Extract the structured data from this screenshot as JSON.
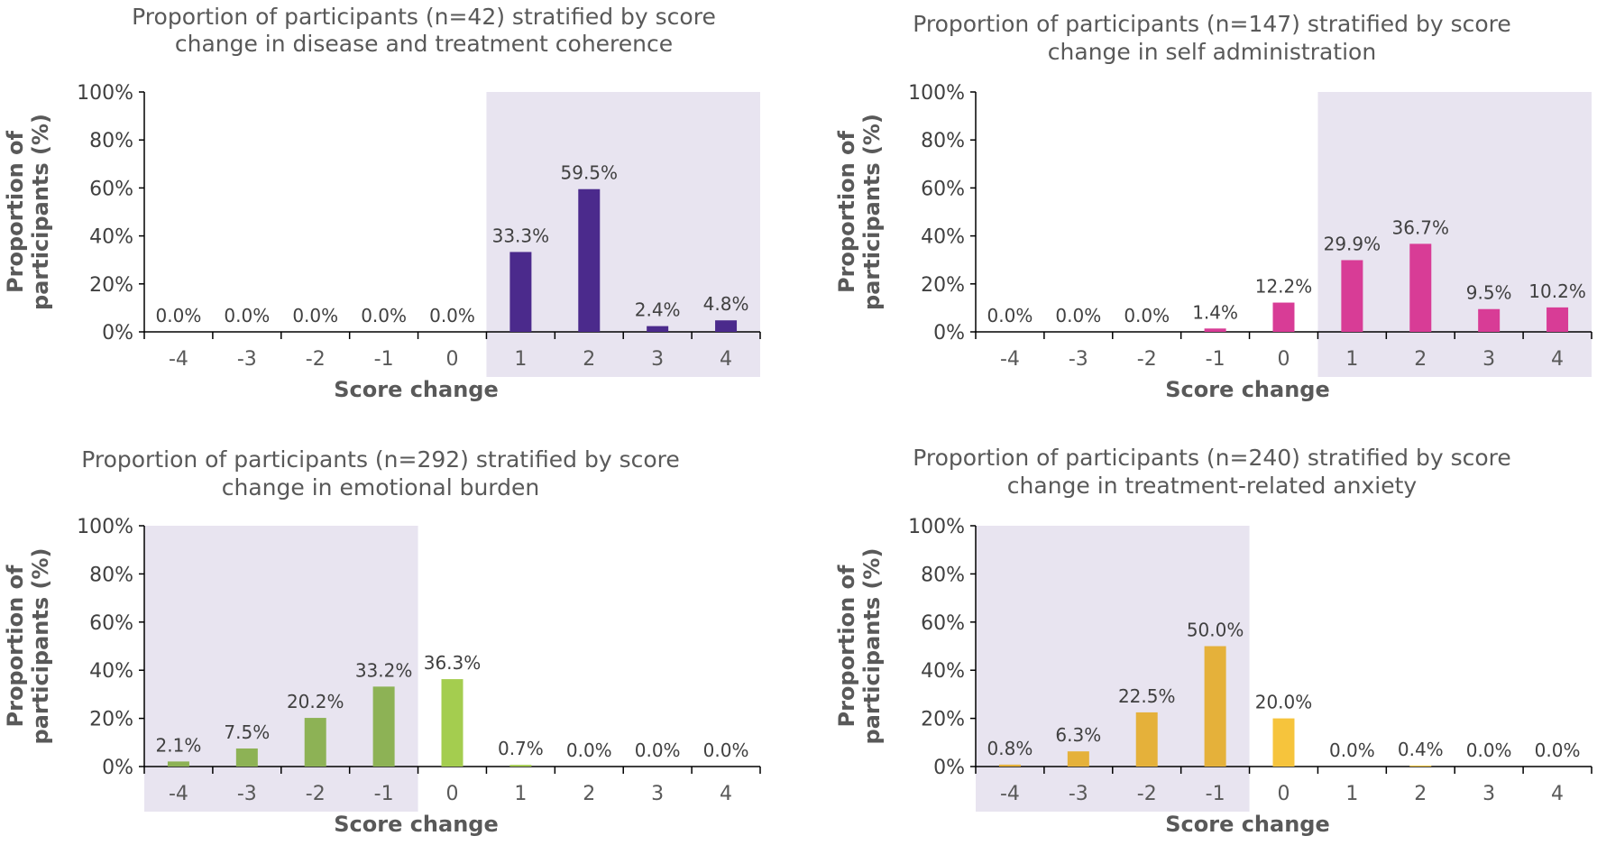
{
  "chart_data": [
    {
      "type": "bar",
      "title_lines": [
        "Proportion of participants (n=42) stratified by score",
        "change in disease and treatment coherence"
      ],
      "xlabel": "Score change",
      "ylabel_lines": [
        "Proportion of",
        "participants (%)"
      ],
      "yticks": [
        "0%",
        "20%",
        "40%",
        "60%",
        "80%",
        "100%"
      ],
      "ylim": [
        0,
        100
      ],
      "categories": [
        "-4",
        "-3",
        "-2",
        "-1",
        "0",
        "1",
        "2",
        "3",
        "4"
      ],
      "values": [
        0.0,
        0.0,
        0.0,
        0.0,
        0.0,
        33.3,
        59.5,
        2.4,
        4.8
      ],
      "labels": [
        "0.0%",
        "0.0%",
        "0.0%",
        "0.0%",
        "0.0%",
        "33.3%",
        "59.5%",
        "2.4%",
        "4.8%"
      ],
      "highlight_categories": [
        "1",
        "2",
        "3",
        "4"
      ],
      "colors": [
        "#4b2a8c",
        "#4b2a8c",
        "#4b2a8c",
        "#4b2a8c",
        "#4b2a8c",
        "#4b2a8c",
        "#4b2a8c",
        "#4b2a8c",
        "#4b2a8c"
      ]
    },
    {
      "type": "bar",
      "title_lines": [
        "Proportion of participants (n=147) stratified by score",
        "change in self administration"
      ],
      "xlabel": "Score change",
      "ylabel_lines": [
        "Proportion of",
        "participants (%)"
      ],
      "yticks": [
        "0%",
        "20%",
        "40%",
        "60%",
        "80%",
        "100%"
      ],
      "ylim": [
        0,
        100
      ],
      "categories": [
        "-4",
        "-3",
        "-2",
        "-1",
        "0",
        "1",
        "2",
        "3",
        "4"
      ],
      "values": [
        0.0,
        0.0,
        0.0,
        1.4,
        12.2,
        29.9,
        36.7,
        9.5,
        10.2
      ],
      "labels": [
        "0.0%",
        "0.0%",
        "0.0%",
        "1.4%",
        "12.2%",
        "29.9%",
        "36.7%",
        "9.5%",
        "10.2%"
      ],
      "highlight_categories": [
        "1",
        "2",
        "3",
        "4"
      ],
      "colors": [
        "#d83c96",
        "#d83c96",
        "#d83c96",
        "#d83c96",
        "#d83c96",
        "#d83c96",
        "#d83c96",
        "#d83c96",
        "#d83c96"
      ]
    },
    {
      "type": "bar",
      "title_lines": [
        "Proportion of participants (n=292) stratified by score",
        "change in emotional burden"
      ],
      "xlabel": "Score change",
      "ylabel_lines": [
        "Proportion of",
        "participants (%)"
      ],
      "yticks": [
        "0%",
        "20%",
        "40%",
        "60%",
        "80%",
        "100%"
      ],
      "ylim": [
        0,
        100
      ],
      "categories": [
        "-4",
        "-3",
        "-2",
        "-1",
        "0",
        "1",
        "2",
        "3",
        "4"
      ],
      "values": [
        2.1,
        7.5,
        20.2,
        33.2,
        36.3,
        0.7,
        0.0,
        0.0,
        0.0
      ],
      "labels": [
        "2.1%",
        "7.5%",
        "20.2%",
        "33.2%",
        "36.3%",
        "0.7%",
        "0.0%",
        "0.0%",
        "0.0%"
      ],
      "highlight_categories": [
        "-4",
        "-3",
        "-2",
        "-1"
      ],
      "colors": [
        "#8db255",
        "#8db255",
        "#8db255",
        "#8db255",
        "#a4cd4f",
        "#a4cd4f",
        "#a4cd4f",
        "#a4cd4f",
        "#a4cd4f"
      ]
    },
    {
      "type": "bar",
      "title_lines": [
        "Proportion of participants (n=240) stratified by score",
        "change in treatment-related anxiety"
      ],
      "xlabel": "Score change",
      "ylabel_lines": [
        "Proportion of",
        "participants (%)"
      ],
      "yticks": [
        "0%",
        "20%",
        "40%",
        "60%",
        "80%",
        "100%"
      ],
      "ylim": [
        0,
        100
      ],
      "categories": [
        "-4",
        "-3",
        "-2",
        "-1",
        "0",
        "1",
        "2",
        "3",
        "4"
      ],
      "values": [
        0.8,
        6.3,
        22.5,
        50.0,
        20.0,
        0.0,
        0.4,
        0.0,
        0.0
      ],
      "labels": [
        "0.8%",
        "6.3%",
        "22.5%",
        "50.0%",
        "20.0%",
        "0.0%",
        "0.4%",
        "0.0%",
        "0.0%"
      ],
      "highlight_categories": [
        "-4",
        "-3",
        "-2",
        "-1"
      ],
      "colors": [
        "#e5b13a",
        "#e5b13a",
        "#e5b13a",
        "#e5b13a",
        "#f6c43c",
        "#f6c43c",
        "#f6c43c",
        "#f6c43c",
        "#f6c43c"
      ]
    }
  ],
  "theme": {
    "highlight_fill": "#e8e4f0",
    "axis_color": "#000000",
    "text_color": "#595959"
  }
}
